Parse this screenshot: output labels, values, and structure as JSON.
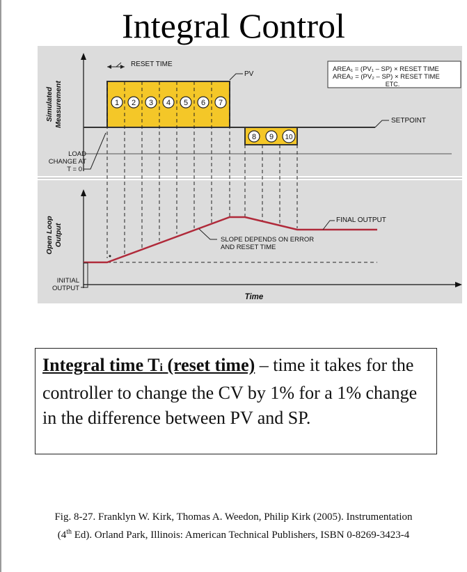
{
  "page": {
    "title": "Integral Control"
  },
  "figure": {
    "reset_time": "RESET TIME",
    "pv": "PV",
    "area1": "AREA₁ = (PV₁ – SP) × RESET TIME",
    "area2": "AREA₂ = (PV₂ – SP) × RESET TIME",
    "etc": "ETC.",
    "setpoint": "SETPOINT",
    "load_change_1": "LOAD",
    "load_change_2": "CHANGE AT",
    "load_change_3": "T = 0",
    "y_label_top_1": "Simulated",
    "y_label_top_2": "Measurement",
    "y_label_bottom_1": "Open Loop",
    "y_label_bottom_2": "Output",
    "final_output": "FINAL OUTPUT",
    "slope_1": "SLOPE DEPENDS ON ERROR",
    "slope_2": "AND RESET TIME",
    "initial_output_1": "INITIAL",
    "initial_output_2": "OUTPUT",
    "x_label": "Time",
    "box_numbers": [
      "1",
      "2",
      "3",
      "4",
      "5",
      "6",
      "7"
    ],
    "neg_numbers": [
      "8",
      "9",
      "10"
    ],
    "colors": {
      "area_fill": "#f4c728",
      "output_line": "#b02a3a",
      "panel_bg": "#dcdcdc"
    }
  },
  "definition": {
    "term_prefix": "Integral time T",
    "term_sub": "i",
    "term_suffix": " (reset time)",
    "body": " – time it takes for the controller to change the CV by 1% for a 1% change in the difference between  PV and SP."
  },
  "citation": {
    "line1": "Fig. 8-27. Franklyn W. Kirk, Thomas A. Weedon, Philip Kirk (2005). Instrumentation",
    "l2_a": "(4",
    "l2_sup": "th",
    "l2_b": " Ed). Orland Park, Illinois: American Technical Publishers, ISBN 0-8269-3423-4"
  }
}
